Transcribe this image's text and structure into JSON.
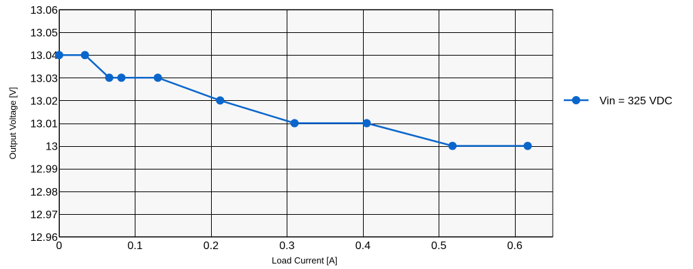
{
  "chart_data": {
    "type": "line",
    "title": "",
    "xlabel": "Load Current [A]",
    "ylabel": "Output Voltage [V]",
    "xlim": [
      0,
      0.65
    ],
    "ylim": [
      12.96,
      13.06
    ],
    "x_ticks": [
      0,
      0.1,
      0.2,
      0.3,
      0.4,
      0.5,
      0.6
    ],
    "x_tick_labels": [
      "0",
      "0.1",
      "0.2",
      "0.3",
      "0.4",
      "0.5",
      "0.6"
    ],
    "y_ticks": [
      12.96,
      12.97,
      12.98,
      12.99,
      13.0,
      13.01,
      13.02,
      13.03,
      13.04,
      13.05,
      13.06
    ],
    "y_tick_labels": [
      "12.96",
      "12.97",
      "12.98",
      "12.99",
      "13",
      "13.01",
      "13.02",
      "13.03",
      "13.04",
      "13.05",
      "13.06"
    ],
    "grid": true,
    "legend_position": "right",
    "plot_background": "#f7f7f7",
    "series": [
      {
        "name": "Vin = 325 VDC",
        "color": "#0b66cc",
        "x": [
          0,
          0.034,
          0.066,
          0.082,
          0.13,
          0.212,
          0.31,
          0.405,
          0.518,
          0.617
        ],
        "y": [
          13.04,
          13.04,
          13.03,
          13.03,
          13.03,
          13.02,
          13.01,
          13.01,
          13.0,
          13.0
        ]
      }
    ]
  }
}
